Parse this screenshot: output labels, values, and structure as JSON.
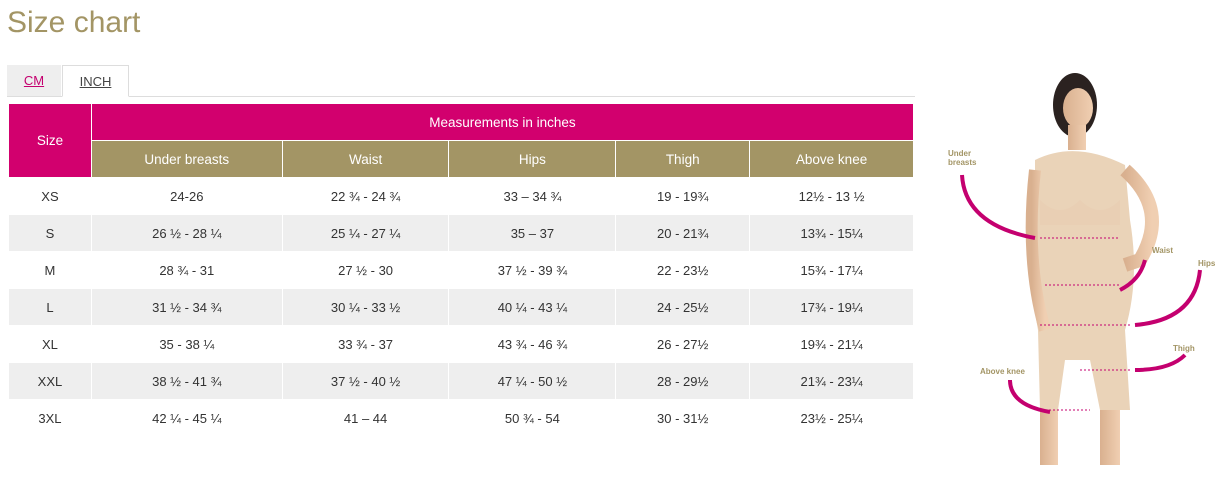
{
  "title": "Size chart",
  "tabs": [
    {
      "label": "CM",
      "active": false
    },
    {
      "label": "INCH",
      "active": true
    }
  ],
  "table": {
    "size_header": "Size",
    "group_header": "Measurements in inches",
    "columns": [
      "Under breasts",
      "Waist",
      "Hips",
      "Thigh",
      "Above knee"
    ],
    "rows": [
      [
        "XS",
        "24-26",
        "22 ¾ - 24 ¾",
        "33 – 34 ¾",
        "19 - 19¾",
        "12½ - 13 ½"
      ],
      [
        "S",
        "26 ½ - 28 ¼",
        "25 ¼ - 27 ¼",
        "35 – 37",
        "20 - 21¾",
        "13¾ - 15¼"
      ],
      [
        "M",
        "28 ¾ - 31",
        "27 ½ - 30",
        "37 ½ - 39 ¾",
        "22 - 23½",
        "15¾ - 17¼"
      ],
      [
        "L",
        "31 ½ - 34 ¾",
        "30 ¼ - 33 ½",
        "40 ¼ - 43 ¼",
        "24 - 25½",
        "17¾ - 19¼"
      ],
      [
        "XL",
        "35 - 38 ¼",
        "33 ¾ - 37",
        "43 ¾ - 46 ¾",
        "26 - 27½",
        "19¾ - 21¼"
      ],
      [
        "XXL",
        "38 ½ - 41 ¾",
        "37 ½ - 40 ½",
        "47 ¼ - 50 ½",
        "28 - 29½",
        "21¾ - 23¼"
      ],
      [
        "3XL",
        "42 ¼ - 45 ¼",
        "41 – 44",
        "50 ¾ - 54",
        "30 - 31½",
        "23½ - 25¼"
      ]
    ]
  },
  "image_labels": {
    "under_breasts_1": "Under",
    "under_breasts_2": "breasts",
    "waist": "Waist",
    "hips": "Hips",
    "thigh": "Thigh",
    "above_knee": "Above knee"
  },
  "colors": {
    "accent_pink": "#d2006e",
    "gold": "#a39565",
    "row_alt": "#eeeeee"
  }
}
